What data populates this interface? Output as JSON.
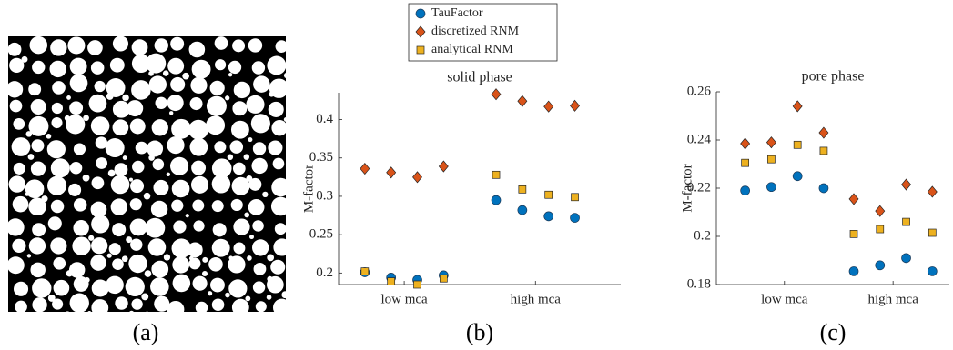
{
  "image_panel": {
    "label": "(a)"
  },
  "chart_data": [
    {
      "type": "scatter",
      "title": "solid phase",
      "y_label": "M-factor",
      "panel_label": "(b)",
      "x": [
        1,
        2,
        3,
        4,
        6,
        7,
        8,
        9
      ],
      "xlim": [
        0,
        10.75
      ],
      "xticks": [
        {
          "value": 2.5,
          "label": "low mca"
        },
        {
          "value": 7.5,
          "label": "high mca"
        }
      ],
      "ylim": [
        0.185,
        0.435
      ],
      "yticks": [
        0.2,
        0.25,
        0.3,
        0.35,
        0.4
      ],
      "series": [
        {
          "name": "TauFactor",
          "marker": "circle",
          "color": "#0072bd",
          "values": [
            0.201,
            0.194,
            0.191,
            0.197,
            0.295,
            0.282,
            0.274,
            0.272
          ]
        },
        {
          "name": "discretized RNM",
          "marker": "diamond",
          "color": "#d95319",
          "values": [
            0.336,
            0.331,
            0.325,
            0.339,
            0.433,
            0.424,
            0.417,
            0.418
          ]
        },
        {
          "name": "analytical RNM",
          "marker": "square",
          "color": "#edb120",
          "values": [
            0.202,
            0.189,
            0.185,
            0.193,
            0.328,
            0.309,
            0.302,
            0.299
          ]
        }
      ]
    },
    {
      "type": "scatter",
      "title": "pore phase",
      "y_label": "M-factor",
      "panel_label": "(c)",
      "x": [
        1,
        2,
        3,
        4,
        5.15,
        6.15,
        7.15,
        8.15
      ],
      "xlim": [
        -0.1,
        8.8
      ],
      "xticks": [
        {
          "value": 2.5,
          "label": "low mca"
        },
        {
          "value": 6.65,
          "label": "high mca"
        }
      ],
      "ylim": [
        0.18,
        0.26
      ],
      "yticks": [
        0.18,
        0.2,
        0.22,
        0.24,
        0.26
      ],
      "series": [
        {
          "marker": "circle",
          "color": "#0072bd",
          "values": [
            0.219,
            0.2205,
            0.225,
            0.22,
            0.1855,
            0.188,
            0.191,
            0.1855
          ]
        },
        {
          "marker": "diamond",
          "color": "#d95319",
          "values": [
            0.2385,
            0.239,
            0.254,
            0.243,
            0.2155,
            0.2105,
            0.2215,
            0.2185
          ]
        },
        {
          "marker": "square",
          "color": "#edb120",
          "values": [
            0.2305,
            0.232,
            0.238,
            0.2355,
            0.201,
            0.203,
            0.206,
            0.2015
          ]
        }
      ]
    }
  ]
}
